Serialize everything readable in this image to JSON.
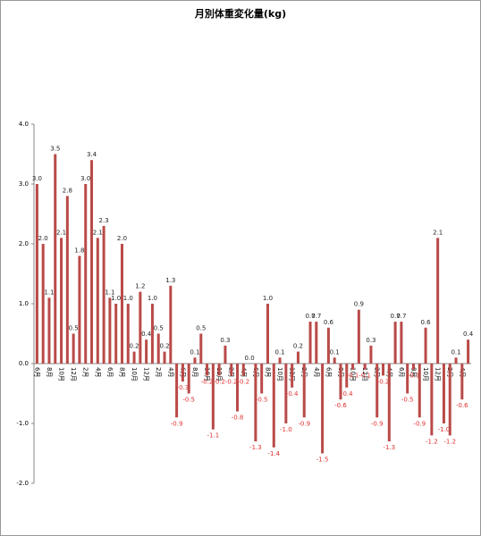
{
  "chart_data": {
    "type": "bar",
    "title": "月別体重変化量(kg)",
    "categories": [
      "6月",
      null,
      "8月",
      null,
      "10月",
      null,
      "12月",
      null,
      "2月",
      null,
      "4月",
      null,
      "6月",
      null,
      "8月",
      null,
      "10月",
      null,
      "12月",
      null,
      "2月",
      null,
      "4月",
      null,
      "6月",
      null,
      "8月",
      null,
      "10月",
      null,
      "12月",
      null,
      "2月",
      null,
      "4月",
      null,
      "6月",
      null,
      "8月",
      null,
      "10月",
      null,
      "12月",
      null,
      "2月",
      null,
      "4月",
      null,
      "6月",
      null,
      "8月",
      null,
      "10月",
      null,
      "12月",
      null,
      "2月",
      null,
      "4月",
      null,
      "6月",
      null,
      "8月",
      null,
      "10月",
      null,
      "12月",
      null,
      "2月",
      null,
      "4月",
      null
    ],
    "values": [
      3,
      2,
      1.1,
      3.5,
      2.1,
      2.8,
      0.5,
      1.8,
      3,
      3.4,
      2.1,
      2.3,
      1.1,
      1,
      2,
      1,
      0.2,
      1.2,
      0.4,
      1,
      0.5,
      0.2,
      1.3,
      -0.9,
      -0.3,
      -0.5,
      0.1,
      0.5,
      -0.2,
      -1.1,
      -0.2,
      0.3,
      -0.2,
      -0.8,
      -0.2,
      0,
      -1.3,
      -0.5,
      1,
      -1.4,
      0.1,
      -1,
      -0.4,
      0.2,
      -0.9,
      0.7,
      0.7,
      -1.5,
      0.6,
      0.1,
      -0.6,
      -0.4,
      -0.1,
      0.9,
      -0.1,
      0.3,
      -0.9,
      -0.2,
      -1.3,
      0.7,
      0.7,
      -0.5,
      -0.1,
      -0.9,
      0.6,
      -1.2,
      2.1,
      -1,
      -1.2,
      0.1,
      -0.6,
      0.4
    ],
    "value_labels": [
      "3.0",
      "2.0",
      "1.1",
      "3.5",
      "2.1",
      "2.8",
      "0.5",
      "1.8",
      "3.0",
      "3.4",
      "2.1",
      "2.3",
      "1.1",
      "1.0",
      "2.0",
      "1.0",
      "0.2",
      "1.2",
      "0.4",
      "1.0",
      "0.5",
      "0.2",
      "1.3",
      "-0.9",
      "-0.3",
      "-0.5",
      "0.1",
      "0.5",
      "-0.2",
      "-1.1",
      "-0.2",
      "0.3",
      "-0.2",
      "-0.8",
      "-0.2",
      "0.0",
      "-1.3",
      "-0.5",
      "1.0",
      "-1.4",
      "0.1",
      "-1.0",
      "-0.4",
      "0.2",
      "-0.9",
      "0.7",
      "0.7",
      "-1.5",
      "0.6",
      "0.1",
      "-0.6",
      "-0.4",
      "-0.1",
      "0.9",
      "-0.1",
      "0.3",
      "-0.9",
      "-0.2",
      "-1.3",
      "0.7",
      "0.7",
      "-0.5",
      "-0.1",
      "-0.9",
      "0.6",
      "-1.2",
      "2.1",
      "-1.0",
      "-1.2",
      "0.1",
      "-0.6",
      "0.4"
    ],
    "color": "#b94a48",
    "negative_label_color": "#e03030",
    "ylim": [
      -2,
      4
    ],
    "yticks": [
      {
        "value": -2,
        "label": "-2.0"
      },
      {
        "value": -1,
        "label": "-1.0"
      },
      {
        "value": 0,
        "label": "0.0"
      },
      {
        "value": 1,
        "label": "1.0"
      },
      {
        "value": 2,
        "label": "2.0"
      },
      {
        "value": 3,
        "label": "3.0"
      },
      {
        "value": 4,
        "label": "4.0"
      }
    ],
    "grid": false
  }
}
